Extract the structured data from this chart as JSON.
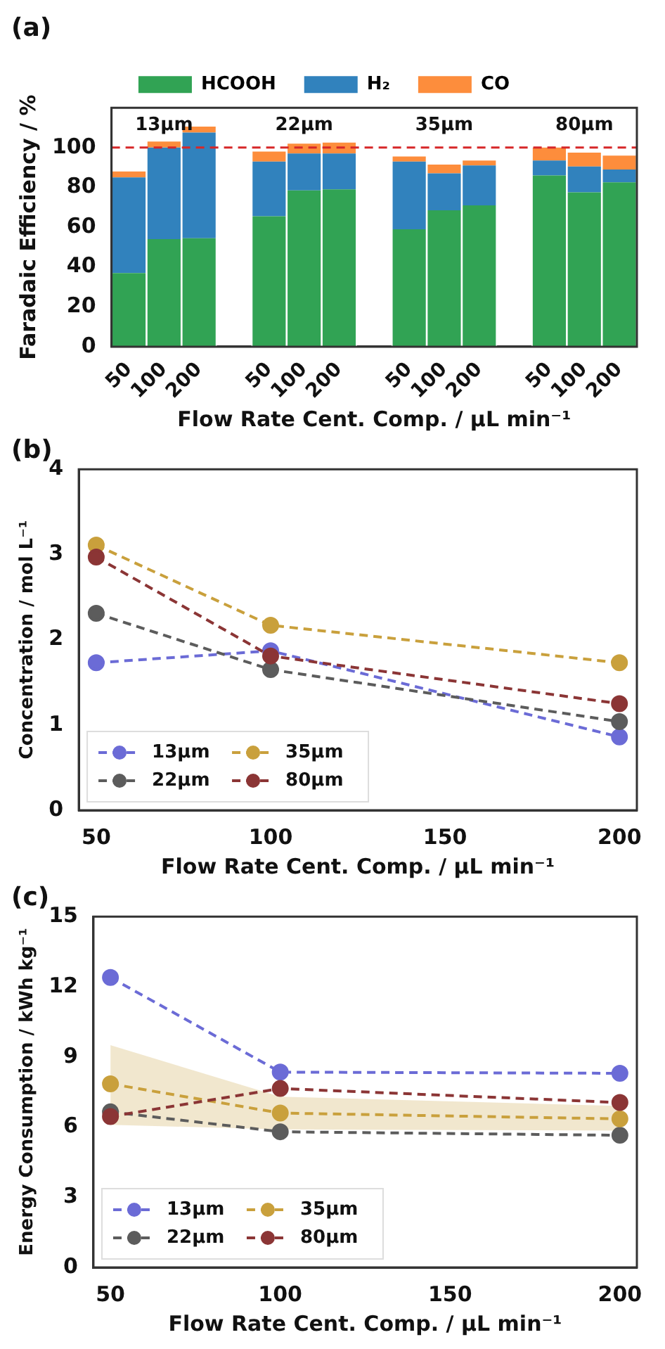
{
  "chart_data": [
    {
      "type": "bar",
      "title": "(a)",
      "xlabel": "Flow Rate Cent. Comp. / µL min⁻¹",
      "ylabel": "Faradaic Efficiency / %",
      "categories": [
        "50",
        "100",
        "200",
        null,
        "50",
        "100",
        "200",
        null,
        "50",
        "100",
        "200",
        null,
        "50",
        "100",
        "200"
      ],
      "stacked": true,
      "series": [
        {
          "name": "HCOOH",
          "color": "#31a354",
          "values": [
            37,
            54,
            54.5,
            null,
            65.5,
            78.5,
            79,
            null,
            59,
            68.5,
            71,
            null,
            86,
            77.5,
            82.5
          ]
        },
        {
          "name": "H₂",
          "color": "#3182bd",
          "values": [
            48,
            46,
            53,
            null,
            27.5,
            18.5,
            18,
            null,
            34,
            18.5,
            20,
            null,
            7.5,
            13,
            6.5
          ]
        },
        {
          "name": "CO",
          "color": "#fd8d3c",
          "values": [
            3,
            3,
            3,
            null,
            5,
            5,
            5.5,
            null,
            2.5,
            4.5,
            2.5,
            null,
            6.5,
            7,
            7
          ]
        }
      ],
      "ylim": [
        0,
        120
      ],
      "yticks": [
        0,
        20,
        40,
        60,
        80,
        100
      ],
      "ref_lines": [
        {
          "axis": "y",
          "value": 100,
          "color": "#d62728",
          "line_style": "dashed"
        }
      ],
      "annotations": [
        "13µm",
        "22µm",
        "35µm",
        "80µm"
      ],
      "legend": "top",
      "grid": false
    },
    {
      "type": "line",
      "title": "(b)",
      "xlabel": "Flow Rate Cent. Comp. / µL min⁻¹",
      "ylabel": "Concentration / mol L⁻¹",
      "x": [
        50,
        100,
        200
      ],
      "series": [
        {
          "name": "13µm",
          "color": "#6b6bd6",
          "values": [
            1.73,
            1.87,
            0.86
          ]
        },
        {
          "name": "22µm",
          "color": "#5c5c5c",
          "values": [
            2.31,
            1.65,
            1.04
          ]
        },
        {
          "name": "35µm",
          "color": "#c9a03c",
          "values": [
            3.11,
            2.17,
            1.73
          ]
        },
        {
          "name": "80µm",
          "color": "#8b3535",
          "values": [
            2.97,
            1.81,
            1.25
          ]
        }
      ],
      "xlim": [
        45,
        205
      ],
      "xticks": [
        50,
        100,
        150,
        200
      ],
      "ylim": [
        0,
        4
      ],
      "yticks": [
        0,
        1,
        2,
        3,
        4
      ],
      "marker": "circle",
      "line_style": "dashed",
      "legend": "bottom left",
      "grid": false
    },
    {
      "type": "line",
      "title": "(c)",
      "xlabel": "Flow Rate Cent. Comp. / µL min⁻¹",
      "ylabel": "Energy Consumption / kWh kg⁻¹",
      "x": [
        50,
        100,
        200
      ],
      "series": [
        {
          "name": "13µm",
          "color": "#6b6bd6",
          "values": [
            12.4,
            8.35,
            8.3
          ]
        },
        {
          "name": "22µm",
          "color": "#5c5c5c",
          "values": [
            6.65,
            5.8,
            5.65
          ]
        },
        {
          "name": "35µm",
          "color": "#c9a03c",
          "values": [
            7.85,
            6.6,
            6.35
          ],
          "lower": [
            6.1,
            5.9,
            5.85
          ],
          "upper": [
            9.5,
            7.3,
            6.9
          ]
        },
        {
          "name": "80µm",
          "color": "#8b3535",
          "values": [
            6.45,
            7.65,
            7.05
          ]
        }
      ],
      "xlim": [
        45,
        205
      ],
      "xticks": [
        50,
        100,
        150,
        200
      ],
      "ylim": [
        0,
        15
      ],
      "yticks": [
        0,
        3,
        6,
        9,
        12,
        15
      ],
      "marker": "circle",
      "line_style": "dashed",
      "legend": "bottom left",
      "grid": false
    }
  ]
}
